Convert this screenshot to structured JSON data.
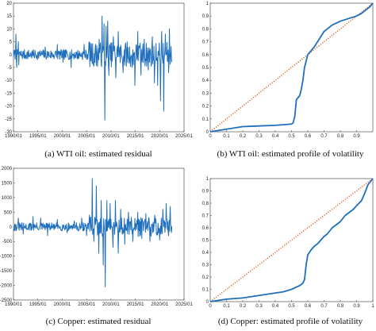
{
  "figure": {
    "captions": [
      "(a) WTI oil: estimated residual",
      "(b) WTI oil: estimated profile of volatility",
      "(c) Copper: estimated residual",
      "(d) Copper: estimated profile of volatility"
    ]
  },
  "colors": {
    "series": "#1f6fbd",
    "diagonal": "#e0662a"
  },
  "chart_data": [
    {
      "id": "a",
      "type": "line",
      "title": "",
      "xlabel": "",
      "ylabel": "",
      "x_range": [
        1990.0,
        2025.0
      ],
      "ylim": [
        -30,
        20
      ],
      "x_ticks": [
        "1990/01",
        "1995/01",
        "2000/01",
        "2005/01",
        "2010/01",
        "2015/01",
        "2020/01",
        "2025/01"
      ],
      "y_ticks": [
        "20",
        "15",
        "10",
        "5",
        "0",
        "-5",
        "-10",
        "-15",
        "-20",
        "-25",
        "-30"
      ],
      "x_start": 1990.0,
      "x_end": 2022.5,
      "base_amp": 2,
      "spikes": [
        [
          1990.5,
          8
        ],
        [
          1990.7,
          -5
        ],
        [
          1991.0,
          5
        ],
        [
          1991.1,
          -4
        ],
        [
          1996.5,
          3
        ],
        [
          1999.0,
          4
        ],
        [
          2000.2,
          -3
        ],
        [
          2001.8,
          -5
        ],
        [
          2004.5,
          4
        ],
        [
          2005.5,
          5
        ],
        [
          2006.4,
          -4
        ],
        [
          2007.6,
          6
        ],
        [
          2008.2,
          15
        ],
        [
          2008.6,
          12
        ],
        [
          2008.75,
          -25.5
        ],
        [
          2009.0,
          11
        ],
        [
          2009.3,
          13
        ],
        [
          2009.6,
          -8
        ],
        [
          2010.5,
          7
        ],
        [
          2011.0,
          -9
        ],
        [
          2011.5,
          9
        ],
        [
          2012.5,
          -7
        ],
        [
          2013.3,
          5
        ],
        [
          2014.3,
          -5
        ],
        [
          2014.9,
          -12
        ],
        [
          2015.5,
          9
        ],
        [
          2016.2,
          -8
        ],
        [
          2016.8,
          6
        ],
        [
          2017.7,
          -6
        ],
        [
          2018.5,
          7
        ],
        [
          2018.9,
          -11
        ],
        [
          2019.6,
          -12
        ],
        [
          2020.2,
          -18
        ],
        [
          2020.4,
          9
        ],
        [
          2020.8,
          -22
        ],
        [
          2021.2,
          8
        ],
        [
          2021.8,
          -7
        ],
        [
          2022.0,
          10
        ]
      ]
    },
    {
      "id": "b",
      "type": "line",
      "title": "",
      "xlabel": "",
      "ylabel": "",
      "xlim": [
        0,
        1
      ],
      "ylim": [
        0,
        1
      ],
      "x_ticks": [
        "0",
        "0.1",
        "0.2",
        "0.3",
        "0.4",
        "0.5",
        "0.6",
        "0.7",
        "0.8",
        "0.9"
      ],
      "y_ticks": [
        "0",
        "0.1",
        "0.2",
        "0.3",
        "0.4",
        "0.5",
        "0.6",
        "0.7",
        "0.8",
        "0.9",
        "1"
      ],
      "series": [
        {
          "x": [
            0,
            0.05,
            0.1,
            0.15,
            0.2,
            0.3,
            0.4,
            0.45,
            0.5,
            0.51,
            0.52,
            0.53,
            0.55,
            0.56,
            0.57,
            0.58,
            0.59,
            0.6,
            0.62,
            0.64,
            0.66,
            0.68,
            0.7,
            0.72,
            0.75,
            0.8,
            0.85,
            0.9,
            0.93,
            0.96,
            0.98,
            1.0
          ],
          "y": [
            0,
            0.01,
            0.02,
            0.03,
            0.04,
            0.045,
            0.05,
            0.055,
            0.06,
            0.07,
            0.12,
            0.25,
            0.28,
            0.33,
            0.4,
            0.5,
            0.55,
            0.6,
            0.63,
            0.66,
            0.7,
            0.74,
            0.78,
            0.8,
            0.83,
            0.86,
            0.88,
            0.9,
            0.92,
            0.95,
            0.97,
            1.0
          ]
        },
        {
          "x": [
            0,
            1
          ],
          "y": [
            0,
            1
          ]
        }
      ]
    },
    {
      "id": "c",
      "type": "line",
      "title": "",
      "xlabel": "",
      "ylabel": "",
      "x_range": [
        1990.0,
        2025.0
      ],
      "ylim": [
        -2500,
        2000
      ],
      "x_ticks": [
        "1990/01",
        "1995/01",
        "2000/01",
        "2005/01",
        "2010/01",
        "2015/01",
        "2020/01",
        "2025/01"
      ],
      "y_ticks": [
        "2000",
        "1500",
        "1000",
        "500",
        "0",
        "-500",
        "-1000",
        "-1500",
        "-2000",
        "-2500"
      ],
      "x_start": 1990.0,
      "x_end": 2022.5,
      "base_amp": 140,
      "spikes": [
        [
          1991.0,
          300
        ],
        [
          1992.0,
          -250
        ],
        [
          1994.0,
          350
        ],
        [
          1995.6,
          300
        ],
        [
          1997.0,
          -300
        ],
        [
          1999.0,
          250
        ],
        [
          2001.0,
          -200
        ],
        [
          2002.5,
          200
        ],
        [
          2004.0,
          300
        ],
        [
          2005.0,
          -300
        ],
        [
          2005.6,
          400
        ],
        [
          2006.2,
          1650
        ],
        [
          2006.5,
          -500
        ],
        [
          2007.0,
          1400
        ],
        [
          2007.5,
          -900
        ],
        [
          2008.0,
          900
        ],
        [
          2008.4,
          -1300
        ],
        [
          2008.8,
          -2050
        ],
        [
          2009.2,
          900
        ],
        [
          2009.8,
          800
        ],
        [
          2010.4,
          -700
        ],
        [
          2010.9,
          900
        ],
        [
          2011.5,
          -900
        ],
        [
          2012.0,
          600
        ],
        [
          2012.8,
          -600
        ],
        [
          2013.6,
          500
        ],
        [
          2014.5,
          -500
        ],
        [
          2015.5,
          500
        ],
        [
          2016.3,
          -400
        ],
        [
          2017.2,
          450
        ],
        [
          2018.0,
          -500
        ],
        [
          2019.0,
          400
        ],
        [
          2020.0,
          -450
        ],
        [
          2020.7,
          600
        ],
        [
          2021.3,
          800
        ],
        [
          2021.8,
          -300
        ],
        [
          2022.2,
          700
        ]
      ]
    },
    {
      "id": "d",
      "type": "line",
      "title": "",
      "xlabel": "",
      "ylabel": "",
      "xlim": [
        0,
        1
      ],
      "ylim": [
        0,
        1
      ],
      "x_ticks": [
        "0",
        "0.1",
        "0.2",
        "0.3",
        "0.4",
        "0.5",
        "0.6",
        "0.7",
        "0.8",
        "0.9",
        "1"
      ],
      "y_ticks": [
        "0",
        "0.1",
        "0.2",
        "0.3",
        "0.4",
        "0.5",
        "0.6",
        "0.7",
        "0.8",
        "0.9",
        "1"
      ],
      "series": [
        {
          "x": [
            0,
            0.05,
            0.1,
            0.2,
            0.3,
            0.4,
            0.45,
            0.5,
            0.55,
            0.57,
            0.58,
            0.59,
            0.6,
            0.62,
            0.64,
            0.66,
            0.68,
            0.7,
            0.72,
            0.75,
            0.78,
            0.8,
            0.83,
            0.85,
            0.88,
            0.9,
            0.93,
            0.95,
            0.97,
            1.0
          ],
          "y": [
            0,
            0.01,
            0.02,
            0.03,
            0.05,
            0.07,
            0.08,
            0.1,
            0.13,
            0.15,
            0.18,
            0.3,
            0.38,
            0.42,
            0.45,
            0.47,
            0.5,
            0.53,
            0.55,
            0.6,
            0.63,
            0.65,
            0.7,
            0.72,
            0.75,
            0.78,
            0.82,
            0.88,
            0.95,
            1.0
          ]
        },
        {
          "x": [
            0,
            1
          ],
          "y": [
            0,
            1
          ]
        }
      ]
    }
  ]
}
